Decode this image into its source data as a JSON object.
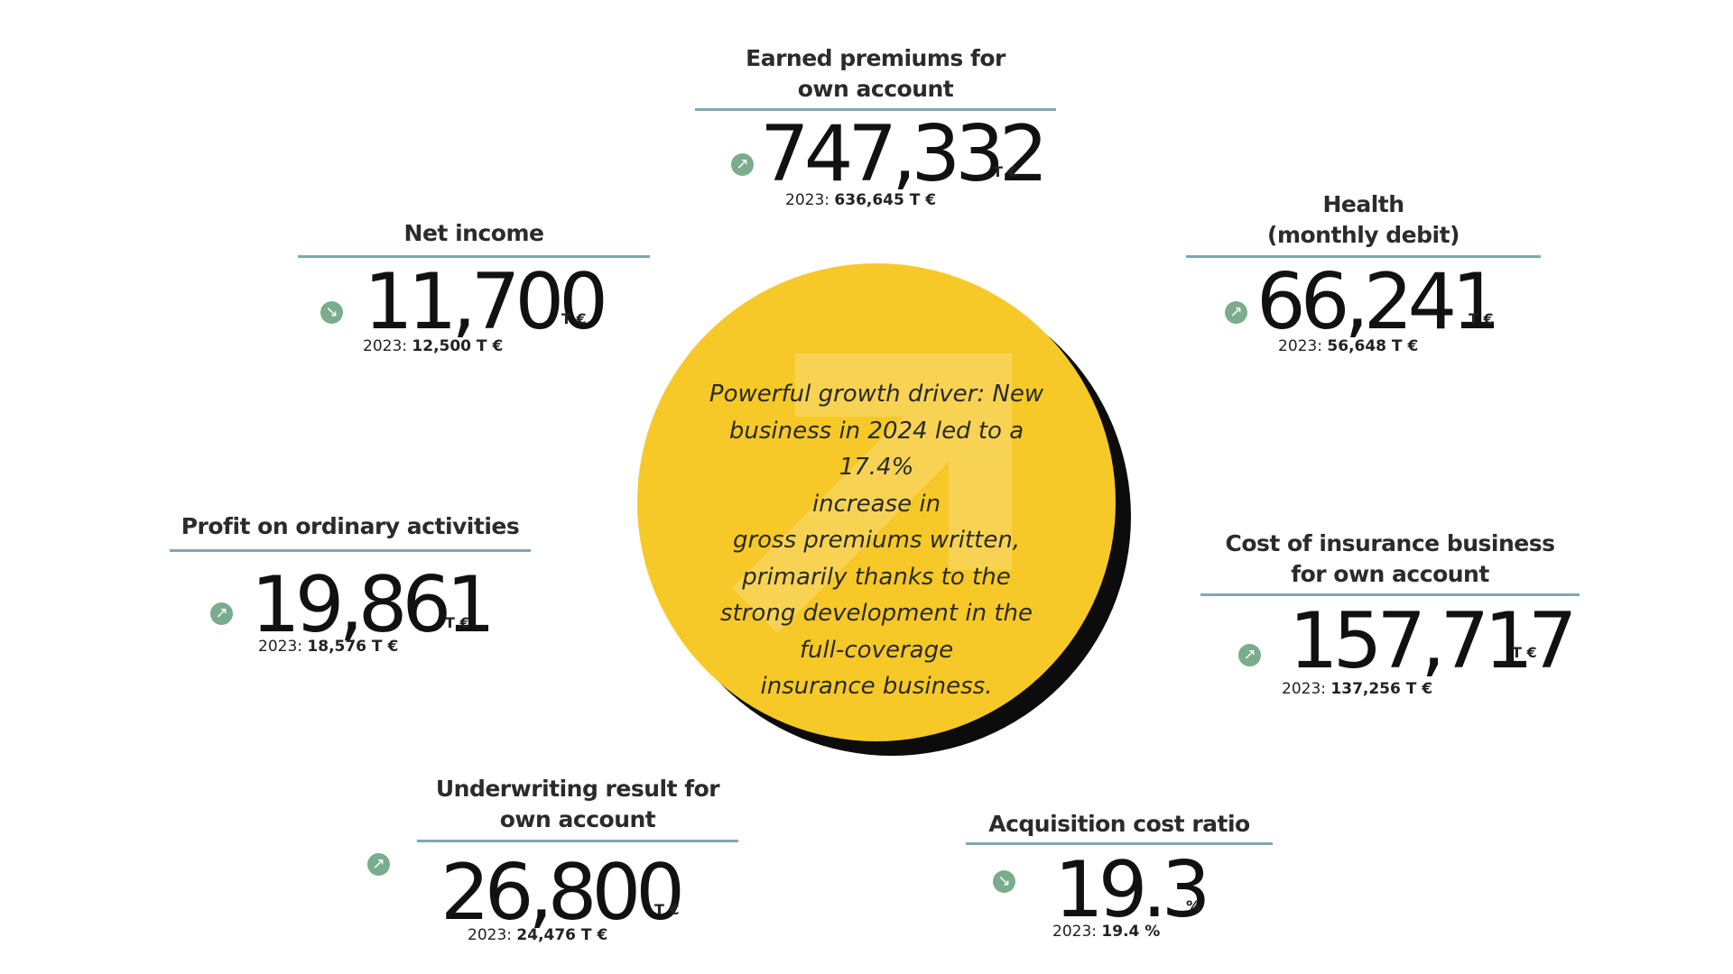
{
  "prev_year_prefix": "2023:",
  "kpis": {
    "earned_premiums": {
      "label_lines": [
        "Earned premiums for",
        "own account"
      ],
      "value": "747,332",
      "unit": "T €",
      "prev": "636,645 T €",
      "trend": "up"
    },
    "net_income": {
      "label_lines": [
        "Net income"
      ],
      "value": "11,700",
      "unit": "T €",
      "prev": "12,500 T €",
      "trend": "down"
    },
    "health": {
      "label_lines": [
        "Health",
        "(monthly debit)"
      ],
      "value": "66,241",
      "unit": "T €",
      "prev": "56,648 T €",
      "trend": "up"
    },
    "profit_ordinary": {
      "label_lines": [
        "Profit on ordinary activities"
      ],
      "value": "19,861",
      "unit": "T €",
      "prev": "18,576 T €",
      "trend": "up"
    },
    "cost_insurance": {
      "label_lines": [
        "Cost of insurance business",
        "for own account"
      ],
      "value": "157,717",
      "unit": "T €",
      "prev": "137,256 T €",
      "trend": "up"
    },
    "underwriting": {
      "label_lines": [
        "Underwriting result for",
        "own account"
      ],
      "value": "26,800",
      "unit": "T €",
      "prev": "24,476 T €",
      "trend": "up"
    },
    "acquisition_ratio": {
      "label_lines": [
        "Acquisition cost ratio"
      ],
      "value": "19.3",
      "unit": "%",
      "prev": "19.4 %",
      "trend": "down"
    }
  },
  "center_text_lines": [
    "Powerful growth driver: New",
    "business in 2024 led to a 17.4%",
    "increase in",
    "gross premiums written,",
    "primarily thanks to the",
    "strong development in the",
    "full-coverage",
    "insurance business."
  ],
  "icons": {
    "trend_up": "arrow-up-right-icon",
    "trend_down": "arrow-down-right-icon",
    "center": "growth-arrow-icon"
  },
  "colors": {
    "circle": "#f7c928",
    "circle_shadow": "#0c0c0c",
    "rule": "#7fa8b0",
    "trend_icon": "#7aac8d"
  }
}
